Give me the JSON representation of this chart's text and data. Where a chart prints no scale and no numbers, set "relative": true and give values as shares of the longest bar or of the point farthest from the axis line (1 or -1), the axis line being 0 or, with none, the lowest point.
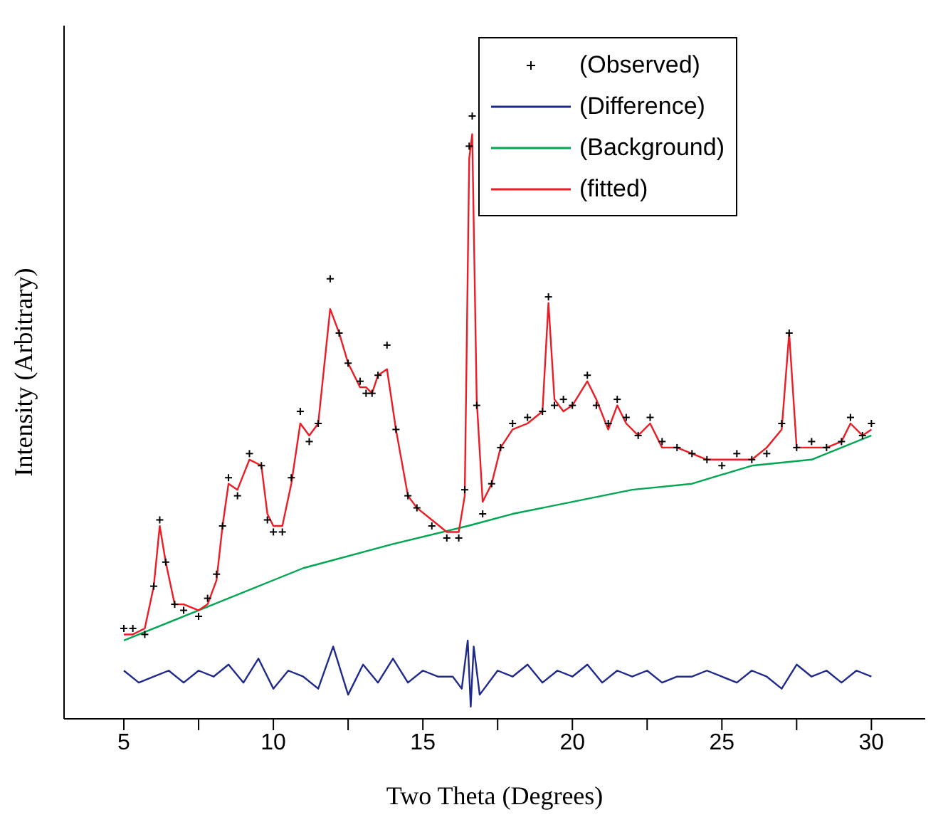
{
  "chart_data": {
    "type": "line",
    "relative": true,
    "xlabel": "Two Theta (Degrees)",
    "ylabel": "Intensity (Arbitrary)",
    "xlim": [
      3,
      31.8
    ],
    "xticks": [
      5,
      {
        "value": 7.5,
        "label": null
      },
      10,
      {
        "value": 12.5,
        "label": null
      },
      15,
      {
        "value": 17.5,
        "label": null
      },
      20,
      {
        "value": 22.5,
        "label": null
      },
      25,
      {
        "value": 27.5,
        "label": null
      },
      30
    ],
    "legend": "top right",
    "grid": false,
    "series": [
      {
        "name": "(Observed)",
        "type": "scatter",
        "marker": "cross",
        "color": "#000000",
        "x": [
          5.0,
          5.3,
          5.7,
          6.0,
          6.2,
          6.4,
          6.7,
          7.0,
          7.5,
          7.8,
          8.1,
          8.3,
          8.5,
          8.8,
          9.2,
          9.6,
          9.8,
          10.0,
          10.3,
          10.6,
          10.9,
          11.2,
          11.5,
          11.9,
          12.2,
          12.5,
          12.9,
          13.1,
          13.3,
          13.5,
          13.8,
          14.1,
          14.5,
          14.8,
          15.3,
          15.8,
          16.2,
          16.4,
          16.55,
          16.65,
          16.8,
          17.0,
          17.3,
          17.6,
          18.0,
          18.5,
          19.0,
          19.2,
          19.4,
          19.7,
          20.0,
          20.5,
          20.8,
          21.2,
          21.5,
          21.8,
          22.2,
          22.6,
          23.0,
          23.5,
          24.0,
          24.5,
          25.0,
          25.5,
          26.0,
          26.5,
          27.0,
          27.25,
          27.5,
          28.0,
          28.5,
          29.0,
          29.3,
          29.7,
          30.0
        ],
        "values": [
          0.15,
          0.15,
          0.14,
          0.22,
          0.33,
          0.26,
          0.19,
          0.18,
          0.17,
          0.2,
          0.24,
          0.32,
          0.4,
          0.37,
          0.44,
          0.42,
          0.33,
          0.31,
          0.31,
          0.4,
          0.51,
          0.46,
          0.49,
          0.73,
          0.64,
          0.59,
          0.56,
          0.54,
          0.54,
          0.57,
          0.62,
          0.48,
          0.37,
          0.35,
          0.32,
          0.3,
          0.3,
          0.38,
          0.95,
          1.0,
          0.52,
          0.34,
          0.39,
          0.45,
          0.49,
          0.5,
          0.51,
          0.7,
          0.52,
          0.53,
          0.52,
          0.57,
          0.52,
          0.49,
          0.53,
          0.5,
          0.47,
          0.5,
          0.46,
          0.45,
          0.44,
          0.43,
          0.42,
          0.44,
          0.43,
          0.44,
          0.49,
          0.64,
          0.45,
          0.46,
          0.45,
          0.46,
          0.5,
          0.47,
          0.49
        ]
      },
      {
        "name": "(Difference)",
        "color": "#1f2a8c",
        "x": [
          5.0,
          5.5,
          6.0,
          6.5,
          7.0,
          7.5,
          8.0,
          8.5,
          9.0,
          9.5,
          10.0,
          10.5,
          11.0,
          11.5,
          12.0,
          12.5,
          13.0,
          13.5,
          14.0,
          14.5,
          15.0,
          15.5,
          16.0,
          16.3,
          16.5,
          16.6,
          16.7,
          16.9,
          17.5,
          18.0,
          18.5,
          19.0,
          19.5,
          20.0,
          20.5,
          21.0,
          21.5,
          22.0,
          22.5,
          23.0,
          23.5,
          24.0,
          24.5,
          25.0,
          25.5,
          26.0,
          26.5,
          27.0,
          27.5,
          28.0,
          28.5,
          29.0,
          29.5,
          30.0
        ],
        "values": [
          0.08,
          0.06,
          0.07,
          0.08,
          0.06,
          0.08,
          0.07,
          0.09,
          0.06,
          0.1,
          0.05,
          0.08,
          0.07,
          0.05,
          0.12,
          0.04,
          0.09,
          0.06,
          0.1,
          0.06,
          0.08,
          0.07,
          0.07,
          0.05,
          0.13,
          0.02,
          0.12,
          0.04,
          0.08,
          0.07,
          0.09,
          0.06,
          0.08,
          0.07,
          0.09,
          0.06,
          0.08,
          0.07,
          0.08,
          0.06,
          0.07,
          0.07,
          0.08,
          0.07,
          0.06,
          0.08,
          0.07,
          0.05,
          0.09,
          0.07,
          0.08,
          0.06,
          0.08,
          0.07
        ]
      },
      {
        "name": "(Background)",
        "color": "#00a651",
        "x": [
          5,
          8,
          11,
          14,
          16.5,
          18,
          20,
          22,
          24,
          26,
          28,
          30
        ],
        "values": [
          0.13,
          0.19,
          0.25,
          0.29,
          0.32,
          0.34,
          0.36,
          0.38,
          0.39,
          0.42,
          0.43,
          0.47
        ]
      },
      {
        "name": "(fitted)",
        "color": "#ed1c24",
        "x": [
          5.0,
          5.3,
          5.7,
          6.0,
          6.2,
          6.4,
          6.7,
          7.0,
          7.5,
          7.8,
          8.1,
          8.3,
          8.5,
          8.8,
          9.2,
          9.6,
          9.8,
          10.0,
          10.3,
          10.6,
          10.9,
          11.2,
          11.5,
          11.9,
          12.2,
          12.5,
          12.9,
          13.1,
          13.3,
          13.5,
          13.8,
          14.1,
          14.5,
          14.8,
          15.3,
          15.8,
          16.2,
          16.4,
          16.55,
          16.65,
          16.8,
          17.0,
          17.3,
          17.6,
          18.0,
          18.5,
          19.0,
          19.2,
          19.4,
          19.7,
          20.0,
          20.5,
          20.8,
          21.2,
          21.5,
          21.8,
          22.2,
          22.6,
          23.0,
          23.5,
          24.0,
          24.5,
          25.0,
          25.5,
          26.0,
          26.5,
          27.0,
          27.25,
          27.5,
          28.0,
          28.5,
          29.0,
          29.3,
          29.7,
          30.0
        ],
        "values": [
          0.14,
          0.14,
          0.15,
          0.22,
          0.32,
          0.26,
          0.19,
          0.19,
          0.18,
          0.19,
          0.23,
          0.32,
          0.39,
          0.38,
          0.43,
          0.42,
          0.34,
          0.32,
          0.32,
          0.39,
          0.49,
          0.47,
          0.49,
          0.68,
          0.64,
          0.59,
          0.55,
          0.55,
          0.54,
          0.57,
          0.58,
          0.48,
          0.37,
          0.35,
          0.33,
          0.31,
          0.31,
          0.37,
          0.93,
          0.97,
          0.53,
          0.36,
          0.39,
          0.45,
          0.48,
          0.49,
          0.51,
          0.69,
          0.53,
          0.51,
          0.52,
          0.56,
          0.53,
          0.48,
          0.52,
          0.49,
          0.47,
          0.49,
          0.45,
          0.45,
          0.44,
          0.43,
          0.43,
          0.43,
          0.43,
          0.45,
          0.48,
          0.64,
          0.45,
          0.45,
          0.45,
          0.46,
          0.49,
          0.47,
          0.48
        ]
      }
    ]
  }
}
